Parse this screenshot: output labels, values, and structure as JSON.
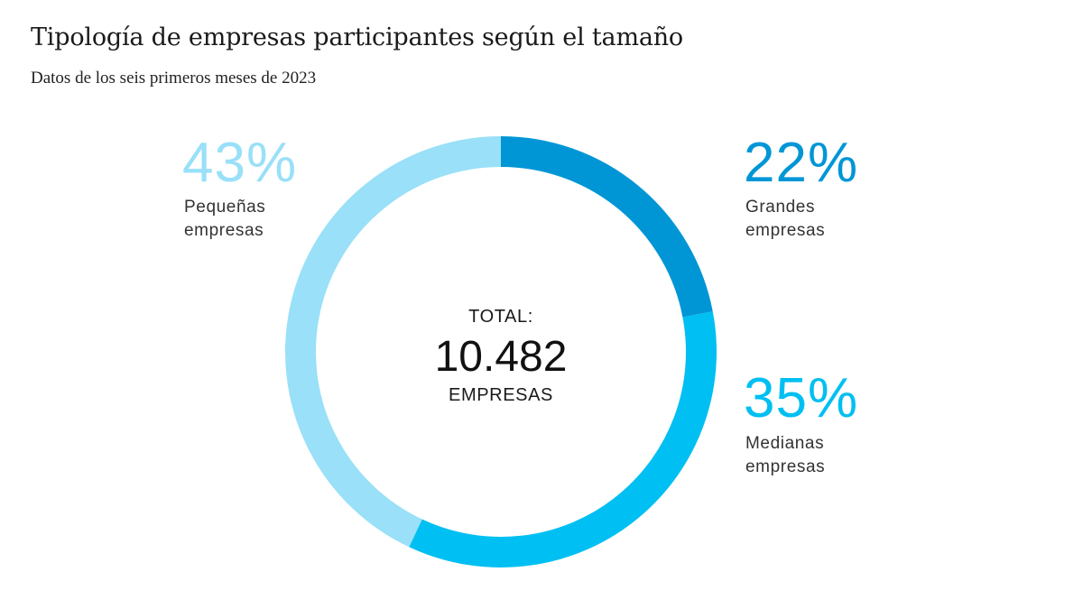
{
  "title": "Tipología de empresas participantes según el tamaño",
  "subtitle": "Datos de los seis primeros meses de 2023",
  "center": {
    "line1": "TOTAL:",
    "value": "10.482",
    "line3": "EMPRESAS"
  },
  "chart_data": {
    "type": "pie",
    "style": "donut",
    "total": 10482,
    "slices": [
      {
        "name": "Grandes empresas",
        "label_lines": [
          "Grandes",
          "empresas"
        ],
        "value": 22,
        "value_label": "22%",
        "color": "#0096d6"
      },
      {
        "name": "Medianas empresas",
        "label_lines": [
          "Medianas",
          "empresas"
        ],
        "value": 35,
        "value_label": "35%",
        "color": "#00bff2"
      },
      {
        "name": "Pequeñas empresas",
        "label_lines": [
          "Pequeñas",
          "empresas"
        ],
        "value": 43,
        "value_label": "43%",
        "color": "#99e0f8"
      }
    ]
  }
}
